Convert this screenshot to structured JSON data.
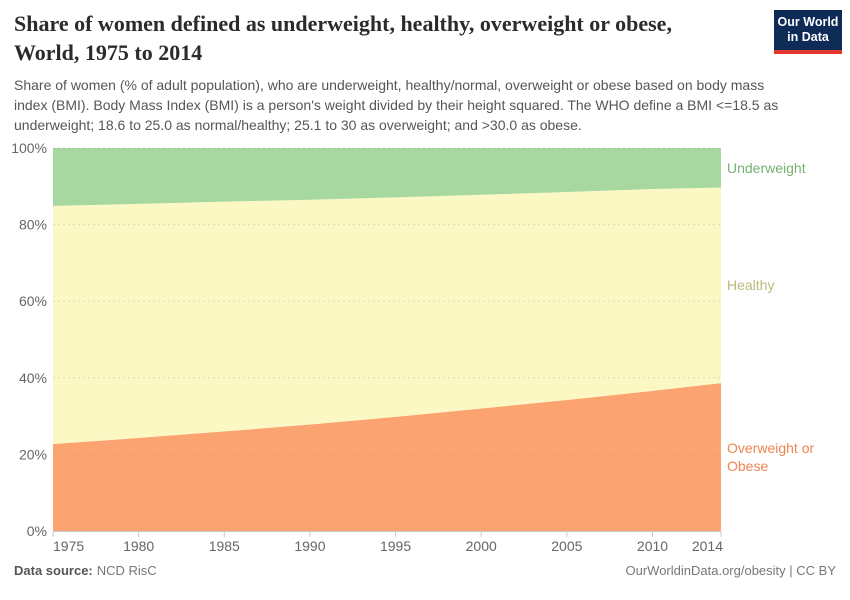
{
  "header": {
    "title_line1": "Share of women defined as underweight, healthy, overweight or obese,",
    "title_line2": "World, 1975 to 2014",
    "subtitle": "Share of women (% of adult population), who are underweight, healthy/normal, overweight or obese based on body mass index (BMI). Body Mass Index (BMI) is a person's weight divided by their height squared. The WHO define a BMI <=18.5 as underweight; 18.6 to 25.0 as normal/healthy; 25.1 to 30 as overweight; and >30.0 as obese.",
    "logo": {
      "line1": "Our World",
      "line2": "in Data",
      "bg_color": "#0d2b56",
      "stripe_color": "#e0362e"
    }
  },
  "chart_data": {
    "type": "area",
    "stacked": true,
    "unit": "%",
    "title": "Share of women defined as underweight, healthy, overweight or obese, World, 1975 to 2014",
    "xlabel": "",
    "ylabel": "",
    "ylim": [
      0,
      100
    ],
    "grid": "dashed horizontal",
    "legend_position": "right-of-areas",
    "x": [
      1975,
      1980,
      1985,
      1990,
      1995,
      2000,
      2005,
      2010,
      2014
    ],
    "series": [
      {
        "name": "Overweight or Obese",
        "color": "#fba471",
        "label_color": "#ee8450",
        "values": [
          22.7,
          24.3,
          26.0,
          27.8,
          29.8,
          32.0,
          34.2,
          36.6,
          38.6
        ]
      },
      {
        "name": "Healthy",
        "color": "#fbf8c4",
        "label_color": "#bdb97c",
        "values": [
          62.2,
          61.1,
          60.0,
          58.7,
          57.3,
          55.8,
          54.3,
          52.7,
          51.1
        ]
      },
      {
        "name": "Underweight",
        "color": "#a7d8a0",
        "label_color": "#77b072",
        "values": [
          15.1,
          14.6,
          14.0,
          13.5,
          12.9,
          12.2,
          11.5,
          10.7,
          10.3
        ]
      }
    ],
    "x_ticks": [
      {
        "value": 1975,
        "label": "1975"
      },
      {
        "value": 1980,
        "label": "1980"
      },
      {
        "value": 1985,
        "label": "1985"
      },
      {
        "value": 1990,
        "label": "1990"
      },
      {
        "value": 1995,
        "label": "1995"
      },
      {
        "value": 2000,
        "label": "2000"
      },
      {
        "value": 2005,
        "label": "2005"
      },
      {
        "value": 2010,
        "label": "2010"
      },
      {
        "value": 2014,
        "label": "2014"
      }
    ],
    "y_ticks": [
      {
        "value": 0,
        "label": "0%"
      },
      {
        "value": 20,
        "label": "20%"
      },
      {
        "value": 40,
        "label": "40%"
      },
      {
        "value": 60,
        "label": "60%"
      },
      {
        "value": 80,
        "label": "80%"
      },
      {
        "value": 100,
        "label": "100%"
      }
    ],
    "axis_text_color": "#666666",
    "axis_line_color": "#c8c8c8",
    "grid_color": "#999999"
  },
  "footer": {
    "source_label": "Data source:",
    "source_value": "NCD RisC",
    "credit": "OurWorldinData.org/obesity | CC BY"
  }
}
